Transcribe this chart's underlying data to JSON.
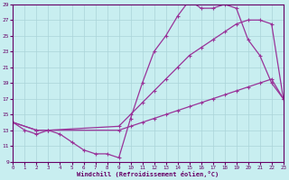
{
  "xlabel": "Windchill (Refroidissement éolien,°C)",
  "xlim": [
    0,
    23
  ],
  "ylim": [
    9,
    29
  ],
  "xticks": [
    0,
    1,
    2,
    3,
    4,
    5,
    6,
    7,
    8,
    9,
    10,
    11,
    12,
    13,
    14,
    15,
    16,
    17,
    18,
    19,
    20,
    21,
    22,
    23
  ],
  "yticks": [
    9,
    11,
    13,
    15,
    17,
    19,
    21,
    23,
    25,
    27,
    29
  ],
  "background_color": "#c8eef0",
  "grid_color": "#aad4d8",
  "line_color": "#993399",
  "line1_x": [
    0,
    1,
    2,
    3,
    4,
    5,
    6,
    7,
    8,
    9,
    10,
    11,
    12,
    13,
    14,
    15,
    16,
    17,
    18,
    19,
    20,
    21,
    22,
    23
  ],
  "line1_y": [
    14.0,
    13.0,
    12.5,
    13.0,
    12.5,
    11.5,
    10.5,
    10.0,
    10.0,
    9.5,
    14.5,
    19.0,
    23.0,
    25.0,
    27.5,
    29.5,
    28.5,
    28.5,
    29.0,
    28.5,
    24.5,
    22.5,
    19.0,
    17.0
  ],
  "line2_x": [
    0,
    2,
    3,
    9,
    10,
    11,
    12,
    13,
    14,
    15,
    16,
    17,
    18,
    19,
    20,
    21,
    22,
    23
  ],
  "line2_y": [
    14.0,
    13.0,
    13.0,
    13.5,
    15.0,
    16.5,
    18.0,
    19.5,
    21.0,
    22.5,
    23.5,
    24.5,
    25.5,
    26.5,
    27.0,
    27.0,
    26.5,
    17.0
  ],
  "line3_x": [
    0,
    2,
    3,
    9,
    10,
    11,
    12,
    13,
    14,
    15,
    16,
    17,
    18,
    19,
    20,
    21,
    22,
    23
  ],
  "line3_y": [
    14.0,
    13.0,
    13.0,
    13.0,
    13.5,
    14.0,
    14.5,
    15.0,
    15.5,
    16.0,
    16.5,
    17.0,
    17.5,
    18.0,
    18.5,
    19.0,
    19.5,
    17.0
  ]
}
